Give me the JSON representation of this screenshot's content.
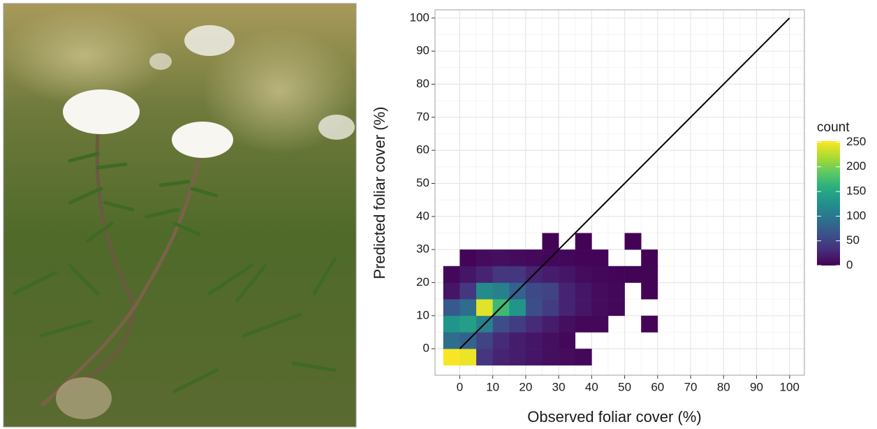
{
  "chart_data": {
    "type": "bin2d",
    "x_label": "Observed foliar cover (%)",
    "y_label": "Predicted foliar cover (%)",
    "x_bins": [
      -5,
      0,
      5,
      10,
      15,
      20,
      25,
      30,
      35,
      40,
      45,
      50,
      55,
      60
    ],
    "y_bins": [
      -5,
      0,
      5,
      10,
      15,
      20,
      25,
      30,
      35
    ],
    "counts": [
      [
        250,
        245,
        40,
        25,
        20,
        15,
        10,
        8,
        5,
        null,
        null,
        null,
        null
      ],
      [
        90,
        80,
        50,
        30,
        20,
        15,
        10,
        5,
        null,
        null,
        null,
        null,
        null
      ],
      [
        130,
        140,
        110,
        60,
        45,
        30,
        20,
        10,
        5,
        5,
        null,
        null,
        3
      ],
      [
        70,
        90,
        240,
        170,
        130,
        60,
        45,
        25,
        15,
        8,
        5,
        null,
        null
      ],
      [
        15,
        40,
        120,
        110,
        80,
        55,
        50,
        25,
        15,
        8,
        5,
        null,
        2
      ],
      [
        5,
        15,
        25,
        40,
        40,
        25,
        20,
        15,
        8,
        5,
        3,
        2,
        2
      ],
      [
        null,
        3,
        8,
        10,
        8,
        6,
        5,
        5,
        3,
        3,
        null,
        null,
        1
      ],
      [
        null,
        null,
        null,
        null,
        null,
        null,
        2,
        null,
        2,
        null,
        null,
        1,
        null
      ]
    ],
    "line": {
      "x": [
        0,
        100
      ],
      "y": [
        0,
        100
      ],
      "color": "#000000"
    },
    "xlim": [
      -7.5,
      104.5
    ],
    "ylim": [
      -8,
      102.5
    ],
    "xticks": [
      0,
      10,
      20,
      30,
      40,
      50,
      60,
      70,
      80,
      90,
      100
    ],
    "yticks": [
      0,
      10,
      20,
      30,
      40,
      50,
      60,
      70,
      80,
      90,
      100
    ],
    "grid": true,
    "minor_grid": true,
    "colormap": "viridis",
    "legend_title": "count",
    "color_lim": [
      0,
      252
    ],
    "color_ticks": [
      0,
      50,
      100,
      150,
      200,
      250
    ]
  }
}
